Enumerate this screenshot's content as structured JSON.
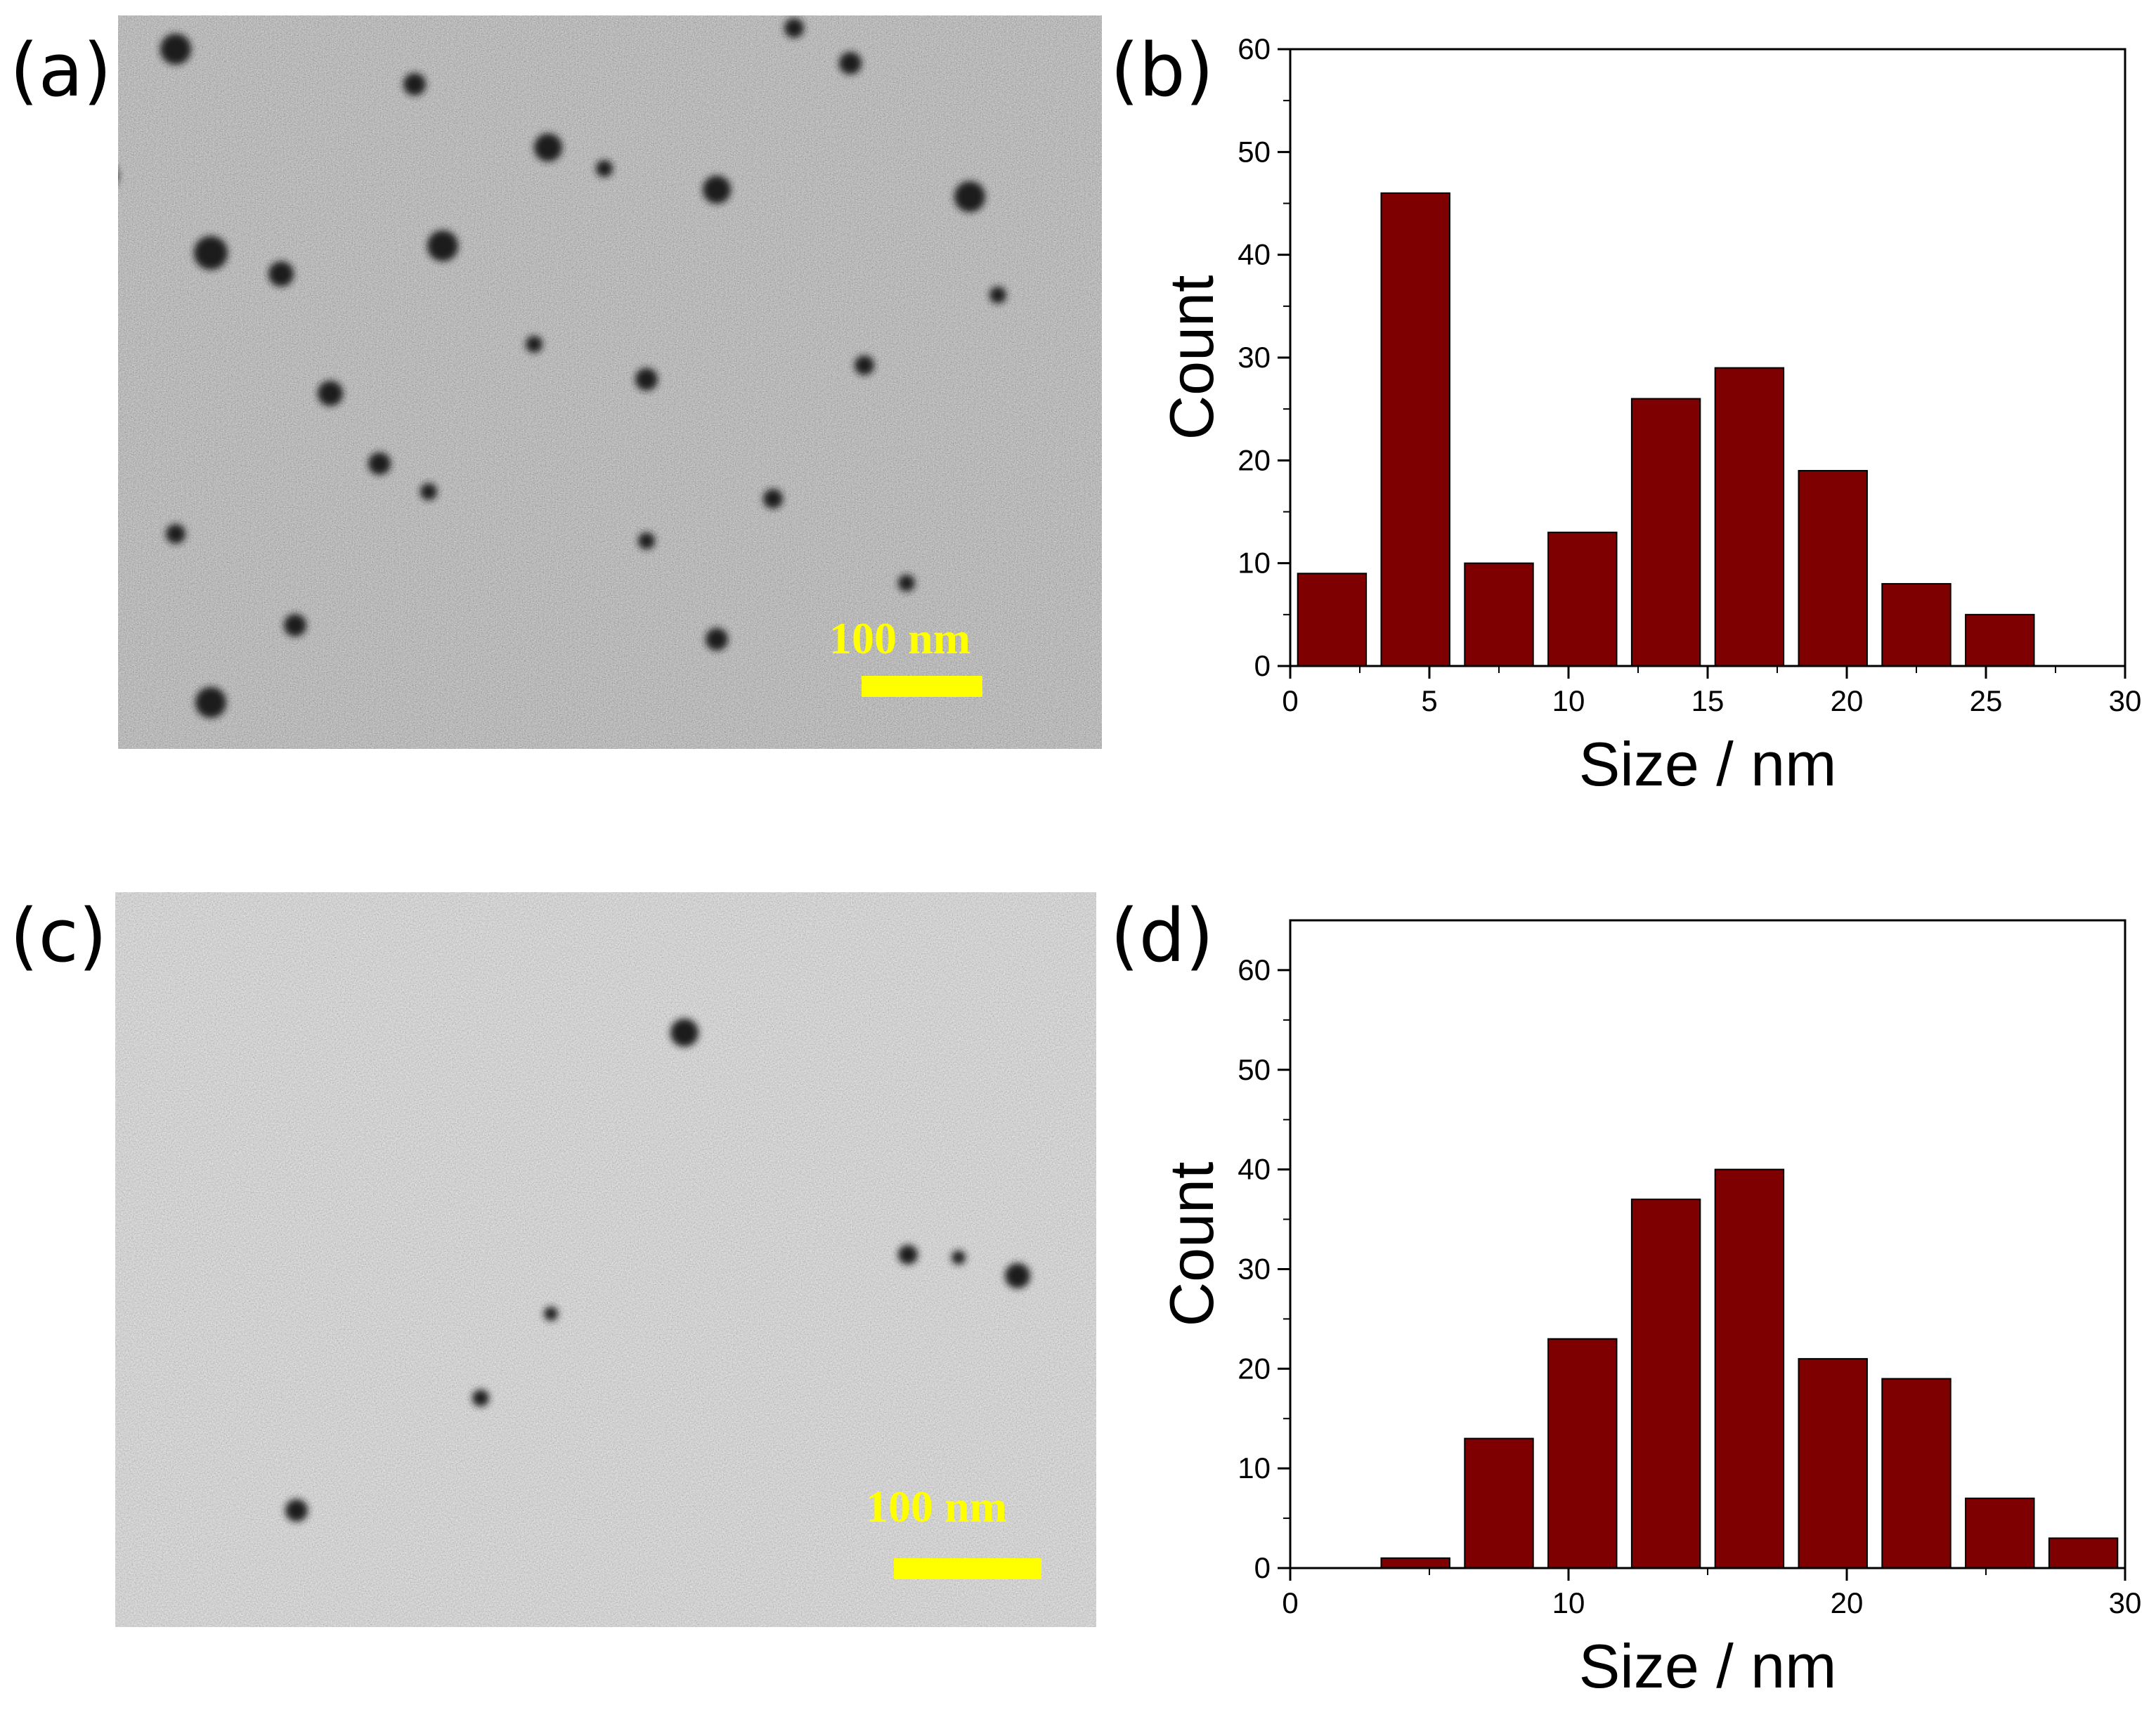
{
  "panels": {
    "a": {
      "label": "(a)",
      "scale_bar": "100 nm"
    },
    "b": {
      "label": "(b)"
    },
    "c": {
      "label": "(c)",
      "scale_bar": "100 nm"
    },
    "d": {
      "label": "(d)"
    }
  },
  "colors": {
    "bar_fill": "#7f0000",
    "scale_bar": "#ffff00"
  },
  "chart_data": [
    {
      "id": "b",
      "type": "bar",
      "title": "",
      "xlabel": "Size / nm",
      "ylabel": "Count",
      "xlim": [
        0,
        30
      ],
      "ylim": [
        0,
        60
      ],
      "xticks": [
        "0",
        "5",
        "10",
        "15",
        "20",
        "25",
        "30"
      ],
      "yticks": [
        "0",
        "10",
        "20",
        "30",
        "40",
        "50",
        "60"
      ],
      "bin_centers": [
        1.5,
        4.5,
        7.5,
        10.5,
        13.5,
        16.5,
        19.5,
        22.5,
        25.5
      ],
      "bin_width": 3,
      "values": [
        9,
        46,
        10,
        13,
        26,
        29,
        19,
        8,
        5
      ]
    },
    {
      "id": "d",
      "type": "bar",
      "title": "",
      "xlabel": "Size / nm",
      "ylabel": "Count",
      "xlim": [
        0,
        30
      ],
      "ylim": [
        0,
        65
      ],
      "xticks": [
        "0",
        "10",
        "20",
        "30"
      ],
      "yticks": [
        "0",
        "10",
        "20",
        "30",
        "40",
        "50",
        "60"
      ],
      "bin_centers": [
        4.5,
        7.5,
        10.5,
        13.5,
        16.5,
        19.5,
        22.5,
        25.5,
        28.5
      ],
      "bin_width": 3,
      "values": [
        1,
        13,
        23,
        37,
        40,
        21,
        19,
        7,
        3
      ]
    }
  ]
}
